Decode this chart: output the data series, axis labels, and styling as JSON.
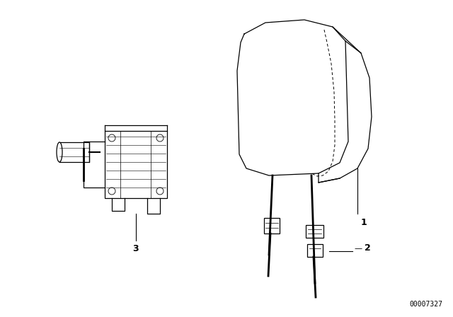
{
  "background_color": "#ffffff",
  "line_color": "#000000",
  "diagram_id": "00007327",
  "fig_width": 6.4,
  "fig_height": 4.48,
  "dpi": 100
}
